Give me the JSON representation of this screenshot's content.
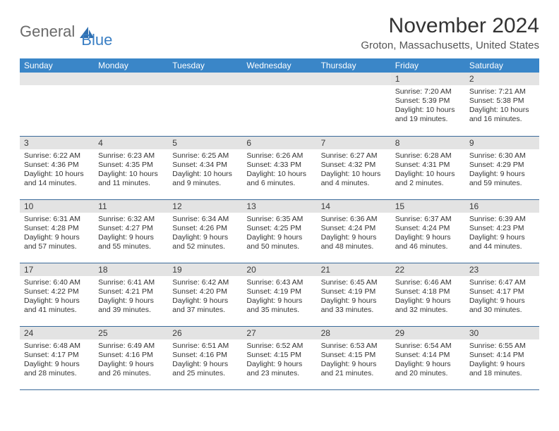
{
  "logo": {
    "text1": "General",
    "text2": "Blue"
  },
  "title": "November 2024",
  "location": "Groton, Massachusetts, United States",
  "accent_color": "#3a86c8",
  "border_color": "#3a6a9a",
  "day_bg": "#e3e3e3",
  "headers": [
    "Sunday",
    "Monday",
    "Tuesday",
    "Wednesday",
    "Thursday",
    "Friday",
    "Saturday"
  ],
  "weeks": [
    [
      null,
      null,
      null,
      null,
      null,
      {
        "n": "1",
        "sunrise": "7:20 AM",
        "sunset": "5:39 PM",
        "dh": "10",
        "dm": "19"
      },
      {
        "n": "2",
        "sunrise": "7:21 AM",
        "sunset": "5:38 PM",
        "dh": "10",
        "dm": "16"
      }
    ],
    [
      {
        "n": "3",
        "sunrise": "6:22 AM",
        "sunset": "4:36 PM",
        "dh": "10",
        "dm": "14"
      },
      {
        "n": "4",
        "sunrise": "6:23 AM",
        "sunset": "4:35 PM",
        "dh": "10",
        "dm": "11"
      },
      {
        "n": "5",
        "sunrise": "6:25 AM",
        "sunset": "4:34 PM",
        "dh": "10",
        "dm": "9"
      },
      {
        "n": "6",
        "sunrise": "6:26 AM",
        "sunset": "4:33 PM",
        "dh": "10",
        "dm": "6"
      },
      {
        "n": "7",
        "sunrise": "6:27 AM",
        "sunset": "4:32 PM",
        "dh": "10",
        "dm": "4"
      },
      {
        "n": "8",
        "sunrise": "6:28 AM",
        "sunset": "4:31 PM",
        "dh": "10",
        "dm": "2"
      },
      {
        "n": "9",
        "sunrise": "6:30 AM",
        "sunset": "4:29 PM",
        "dh": "9",
        "dm": "59"
      }
    ],
    [
      {
        "n": "10",
        "sunrise": "6:31 AM",
        "sunset": "4:28 PM",
        "dh": "9",
        "dm": "57"
      },
      {
        "n": "11",
        "sunrise": "6:32 AM",
        "sunset": "4:27 PM",
        "dh": "9",
        "dm": "55"
      },
      {
        "n": "12",
        "sunrise": "6:34 AM",
        "sunset": "4:26 PM",
        "dh": "9",
        "dm": "52"
      },
      {
        "n": "13",
        "sunrise": "6:35 AM",
        "sunset": "4:25 PM",
        "dh": "9",
        "dm": "50"
      },
      {
        "n": "14",
        "sunrise": "6:36 AM",
        "sunset": "4:24 PM",
        "dh": "9",
        "dm": "48"
      },
      {
        "n": "15",
        "sunrise": "6:37 AM",
        "sunset": "4:24 PM",
        "dh": "9",
        "dm": "46"
      },
      {
        "n": "16",
        "sunrise": "6:39 AM",
        "sunset": "4:23 PM",
        "dh": "9",
        "dm": "44"
      }
    ],
    [
      {
        "n": "17",
        "sunrise": "6:40 AM",
        "sunset": "4:22 PM",
        "dh": "9",
        "dm": "41"
      },
      {
        "n": "18",
        "sunrise": "6:41 AM",
        "sunset": "4:21 PM",
        "dh": "9",
        "dm": "39"
      },
      {
        "n": "19",
        "sunrise": "6:42 AM",
        "sunset": "4:20 PM",
        "dh": "9",
        "dm": "37"
      },
      {
        "n": "20",
        "sunrise": "6:43 AM",
        "sunset": "4:19 PM",
        "dh": "9",
        "dm": "35"
      },
      {
        "n": "21",
        "sunrise": "6:45 AM",
        "sunset": "4:19 PM",
        "dh": "9",
        "dm": "33"
      },
      {
        "n": "22",
        "sunrise": "6:46 AM",
        "sunset": "4:18 PM",
        "dh": "9",
        "dm": "32"
      },
      {
        "n": "23",
        "sunrise": "6:47 AM",
        "sunset": "4:17 PM",
        "dh": "9",
        "dm": "30"
      }
    ],
    [
      {
        "n": "24",
        "sunrise": "6:48 AM",
        "sunset": "4:17 PM",
        "dh": "9",
        "dm": "28"
      },
      {
        "n": "25",
        "sunrise": "6:49 AM",
        "sunset": "4:16 PM",
        "dh": "9",
        "dm": "26"
      },
      {
        "n": "26",
        "sunrise": "6:51 AM",
        "sunset": "4:16 PM",
        "dh": "9",
        "dm": "25"
      },
      {
        "n": "27",
        "sunrise": "6:52 AM",
        "sunset": "4:15 PM",
        "dh": "9",
        "dm": "23"
      },
      {
        "n": "28",
        "sunrise": "6:53 AM",
        "sunset": "4:15 PM",
        "dh": "9",
        "dm": "21"
      },
      {
        "n": "29",
        "sunrise": "6:54 AM",
        "sunset": "4:14 PM",
        "dh": "9",
        "dm": "20"
      },
      {
        "n": "30",
        "sunrise": "6:55 AM",
        "sunset": "4:14 PM",
        "dh": "9",
        "dm": "18"
      }
    ]
  ]
}
